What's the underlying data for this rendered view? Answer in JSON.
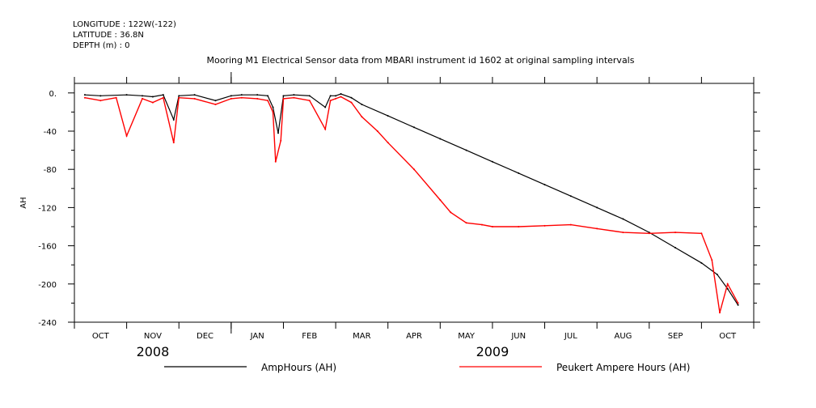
{
  "header": {
    "longitude": "LONGITUDE : 122W(-122)",
    "latitude": "LATITUDE : 36.8N",
    "depth": "DEPTH (m) : 0"
  },
  "chart_data": {
    "type": "line",
    "title": "Mooring M1 Electrical Sensor data from MBARI instrument id 1602 at original sampling intervals",
    "xlabel": "",
    "ylabel": "AH",
    "ylim": [
      -240,
      10
    ],
    "yticks": [
      0,
      -40,
      -80,
      -120,
      -160,
      -200,
      -240
    ],
    "ytick_labels": [
      "0.",
      "-40",
      "-80",
      "-120",
      "-160",
      "-200",
      "-240"
    ],
    "x_unit": "months since 2008-09-15",
    "xlim": [
      0,
      13
    ],
    "month_labels": [
      {
        "label": "OCT",
        "x": 0.5
      },
      {
        "label": "NOV",
        "x": 1.5
      },
      {
        "label": "DEC",
        "x": 2.5
      },
      {
        "label": "JAN",
        "x": 3.5
      },
      {
        "label": "FEB",
        "x": 4.5
      },
      {
        "label": "MAR",
        "x": 5.5
      },
      {
        "label": "APR",
        "x": 6.5
      },
      {
        "label": "MAY",
        "x": 7.5
      },
      {
        "label": "JUN",
        "x": 8.5
      },
      {
        "label": "JUL",
        "x": 9.5
      },
      {
        "label": "AUG",
        "x": 10.5
      },
      {
        "label": "SEP",
        "x": 11.5
      },
      {
        "label": "OCT",
        "x": 12.5
      }
    ],
    "year_labels": [
      {
        "label": "2008",
        "x": 1.5
      },
      {
        "label": "2009",
        "x": 8.0
      }
    ],
    "series": [
      {
        "name": "AmpHours (AH)",
        "color": "#000000",
        "x": [
          0.2,
          0.5,
          1.0,
          1.3,
          1.5,
          1.7,
          1.9,
          2.0,
          2.3,
          2.7,
          3.0,
          3.2,
          3.5,
          3.7,
          3.8,
          3.9,
          4.0,
          4.2,
          4.5,
          4.8,
          4.9,
          5.0,
          5.1,
          5.3,
          5.5,
          6.0,
          6.5,
          7.0,
          7.5,
          8.0,
          8.5,
          9.0,
          9.5,
          10.0,
          10.5,
          11.0,
          11.5,
          12.0,
          12.3,
          12.5,
          12.7
        ],
        "y": [
          -2,
          -3,
          -2,
          -3,
          -4,
          -2,
          -28,
          -3,
          -2,
          -8,
          -3,
          -2,
          -2,
          -3,
          -15,
          -42,
          -3,
          -2,
          -3,
          -15,
          -3,
          -3,
          -1,
          -5,
          -12,
          -24,
          -36,
          -48,
          -60,
          -72,
          -84,
          -96,
          -108,
          -120,
          -132,
          -146,
          -162,
          -178,
          -190,
          -205,
          -222
        ]
      },
      {
        "name": "Peukert Ampere Hours (AH)",
        "color": "#ff0000",
        "x": [
          0.2,
          0.5,
          0.8,
          1.0,
          1.3,
          1.5,
          1.7,
          1.9,
          2.0,
          2.3,
          2.7,
          3.0,
          3.2,
          3.5,
          3.7,
          3.8,
          3.85,
          3.95,
          4.0,
          4.2,
          4.5,
          4.8,
          4.9,
          5.0,
          5.1,
          5.3,
          5.5,
          5.8,
          6.0,
          6.5,
          7.0,
          7.2,
          7.5,
          7.8,
          8.0,
          8.5,
          9.0,
          9.5,
          10.0,
          10.5,
          11.0,
          11.5,
          12.0,
          12.2,
          12.35,
          12.5,
          12.7
        ],
        "y": [
          -5,
          -8,
          -5,
          -45,
          -6,
          -10,
          -5,
          -52,
          -5,
          -6,
          -12,
          -6,
          -5,
          -6,
          -8,
          -20,
          -72,
          -50,
          -6,
          -5,
          -8,
          -38,
          -8,
          -6,
          -4,
          -10,
          -25,
          -40,
          -52,
          -80,
          -112,
          -125,
          -136,
          -138,
          -140,
          -140,
          -139,
          -138,
          -142,
          -146,
          -147,
          -146,
          -147,
          -175,
          -230,
          -200,
          -220
        ]
      }
    ],
    "legend": [
      {
        "name": "AmpHours (AH)",
        "color": "#000000"
      },
      {
        "name": "Peukert Ampere Hours (AH)",
        "color": "#ff0000"
      }
    ]
  }
}
